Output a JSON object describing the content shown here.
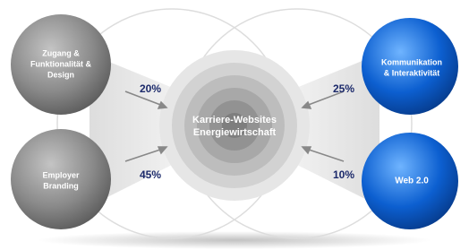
{
  "center": {
    "lines": [
      "Karriere-Websites",
      "Energiewirtschaft"
    ]
  },
  "nodes": [
    {
      "lines": [
        "Zugang &",
        "Funktionalität &",
        "Design"
      ],
      "share": "20%"
    },
    {
      "lines": [
        "Employer",
        "Branding"
      ],
      "share": "45%"
    },
    {
      "lines": [
        "Kommunikation",
        "& Interaktivität"
      ],
      "share": "25%"
    },
    {
      "lines": [
        "Web 2.0"
      ],
      "share": "10%"
    }
  ]
}
